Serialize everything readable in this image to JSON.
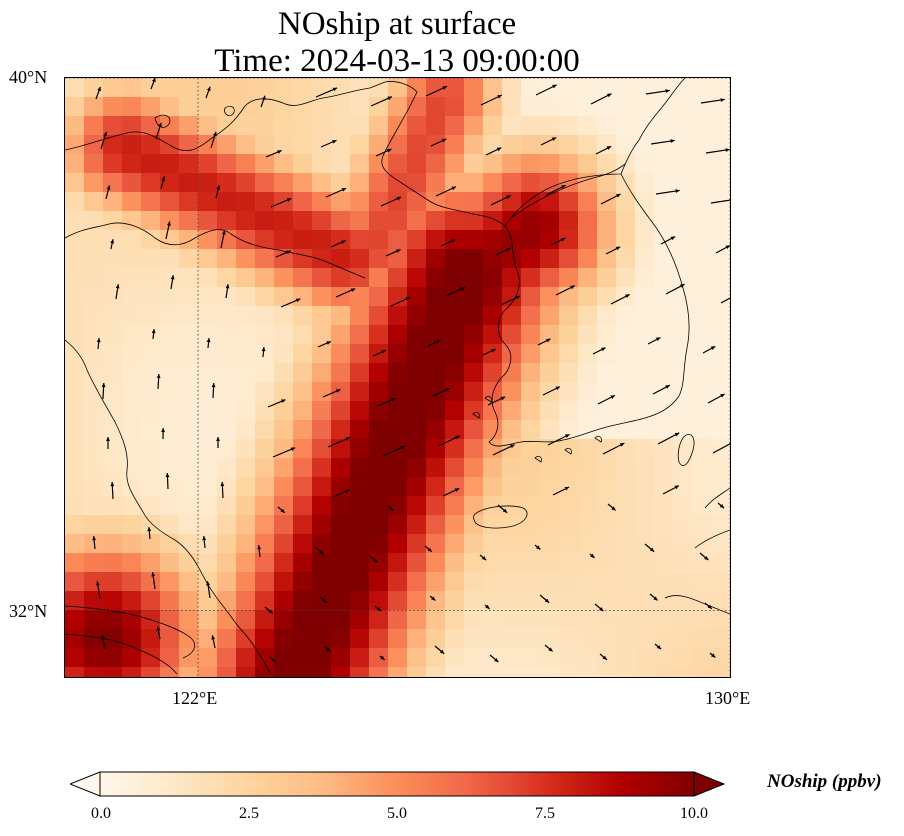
{
  "title": {
    "line1": "NOship at surface",
    "line2": "Time: 2024-03-13 09:00:00"
  },
  "axes": {
    "lat_ticks": [
      "40°N",
      "32°N"
    ],
    "lon_ticks": [
      "122°E",
      "130°E"
    ],
    "extent": {
      "lon": [
        120,
        130
      ],
      "lat": [
        31,
        40
      ]
    },
    "gridlines": "dotted",
    "tick_positions": {
      "lat": [
        40,
        32
      ],
      "lon": [
        122,
        130
      ]
    }
  },
  "colorbar": {
    "label": "NOship (ppbv)",
    "ticks": [
      "0.0",
      "2.5",
      "5.0",
      "7.5",
      "10.0"
    ],
    "tick_values": [
      0,
      2.5,
      5,
      7.5,
      10
    ],
    "range": [
      0,
      10
    ],
    "extend": "both",
    "colormap": "OrRd",
    "colors": [
      "#fff7ec",
      "#fee8c8",
      "#fdd49e",
      "#fdbb84",
      "#fc8d59",
      "#ef6548",
      "#d7301f",
      "#b30000",
      "#7f0000"
    ]
  },
  "map": {
    "description_field": "NOship concentration (ppbv) on a lon/lat grid, high along Yellow Sea shipping lanes",
    "coastline_color": "#000000",
    "vector_color": "#000000"
  }
}
